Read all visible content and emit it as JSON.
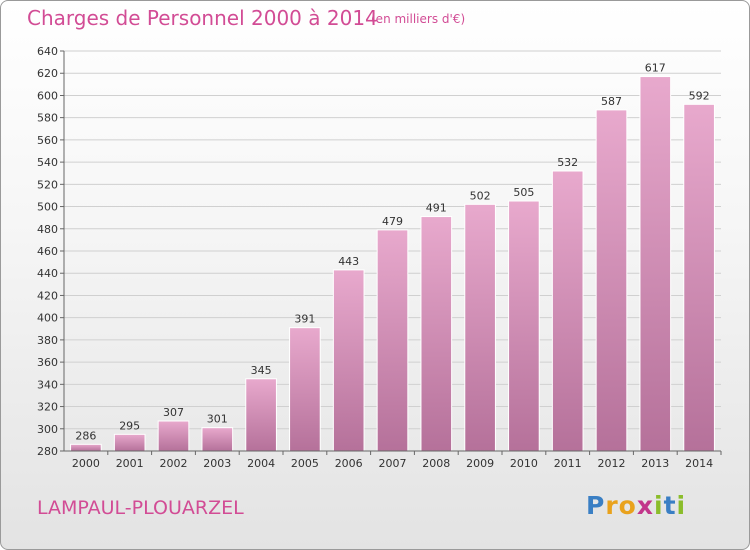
{
  "page": {
    "title": "Charges de Personnel 2000 à 2014",
    "subtitle": "(en milliers d'€)",
    "commune": "LAMPAUL-PLOUARZEL",
    "logo": {
      "letters": [
        "P",
        "r",
        "o",
        "x",
        "i",
        "t",
        "i"
      ],
      "colors": [
        "#3a7fc4",
        "#e9a21d",
        "#e9a21d",
        "#c2368b",
        "#8bbd2b",
        "#3a7fc4",
        "#8bbd2b"
      ]
    }
  },
  "chart_data": {
    "type": "bar",
    "title": "Charges de Personnel 2000 à 2014",
    "subtitle": "(en milliers d'€)",
    "categories": [
      "2000",
      "2001",
      "2002",
      "2003",
      "2004",
      "2005",
      "2006",
      "2007",
      "2008",
      "2009",
      "2010",
      "2011",
      "2012",
      "2013",
      "2014"
    ],
    "values": [
      286,
      295,
      307,
      301,
      345,
      391,
      443,
      479,
      491,
      502,
      505,
      532,
      587,
      617,
      592
    ],
    "ylim": [
      280,
      640
    ],
    "yticks": [
      280,
      300,
      320,
      340,
      360,
      380,
      400,
      420,
      440,
      460,
      480,
      500,
      520,
      540,
      560,
      580,
      600,
      620,
      640
    ],
    "grid": true,
    "bar_color": "#d986b4"
  }
}
